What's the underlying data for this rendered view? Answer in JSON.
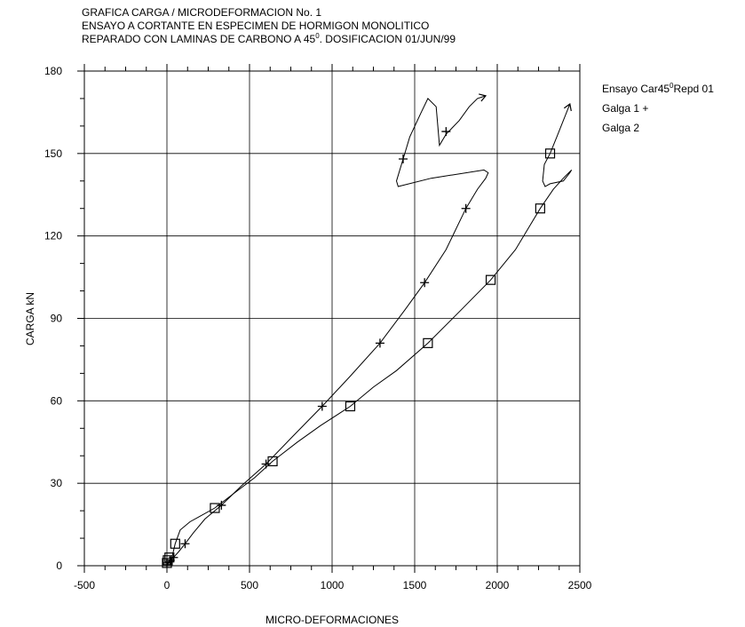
{
  "chart_data": {
    "type": "line",
    "title_lines": [
      "GRAFICA CARGA / MICRODEFORMACION  No. 1",
      "ENSAYO A CORTANTE EN ESPECIMEN DE HORMIGON MONOLITICO",
      "REPARADO CON LAMINAS DE CARBONO A 45",
      "0",
      ". DOSIFICACION 01/JUN/99"
    ],
    "xlabel": "MICRO-DEFORMACIONES",
    "ylabel": "CARGA  kN",
    "xlim": [
      -500,
      2500
    ],
    "ylim": [
      0,
      180
    ],
    "x_ticks": [
      "-500",
      "0",
      "500",
      "1000",
      "1500",
      "2000",
      "2500"
    ],
    "y_ticks": [
      "0",
      "30",
      "60",
      "90",
      "120",
      "150",
      "180"
    ],
    "grid": true,
    "legend": {
      "placement": "right",
      "title_main": "Ensayo Car45",
      "title_sup": "0",
      "title_end": "Repd 01",
      "entries": [
        "Galga 1  +",
        "Galga 2"
      ]
    },
    "series": [
      {
        "name": "Galga 1",
        "marker": "plus",
        "x": [
          0,
          10,
          20,
          40,
          70,
          110,
          160,
          230,
          330,
          450,
          600,
          760,
          940,
          1110,
          1290,
          1440,
          1560,
          1690,
          1810,
          1880,
          1930,
          1945,
          1920,
          1600,
          1400,
          1390,
          1430,
          1470,
          1540,
          1580,
          1630,
          1650,
          1690,
          1770,
          1830,
          1880,
          1930
        ],
        "y": [
          0,
          1,
          2,
          3,
          5,
          8,
          12,
          17,
          22,
          29,
          37,
          47,
          58,
          69,
          81,
          93,
          103,
          115,
          130,
          137,
          141,
          143,
          144,
          141,
          138,
          140,
          148,
          156,
          165,
          170,
          167,
          153,
          157,
          162,
          167,
          170,
          171
        ],
        "marker_x": [
          0,
          20,
          40,
          110,
          330,
          600,
          940,
          1290,
          1560,
          1810,
          1430,
          1690
        ],
        "marker_y": [
          1,
          2,
          3,
          8,
          22,
          37,
          58,
          81,
          103,
          130,
          148,
          158
        ]
      },
      {
        "name": "Galga 2",
        "marker": "square",
        "x": [
          0,
          5,
          15,
          30,
          50,
          80,
          140,
          200,
          290,
          420,
          530,
          640,
          790,
          930,
          1110,
          1250,
          1390,
          1580,
          1780,
          1960,
          2110,
          2260,
          2340,
          2400,
          2450,
          2440,
          2400,
          2320,
          2290,
          2275,
          2285,
          2320,
          2360,
          2400,
          2440
        ],
        "y": [
          0,
          1,
          2,
          3,
          8,
          13,
          16,
          18,
          21,
          27,
          32,
          38,
          45,
          51,
          58,
          65,
          71,
          81,
          93,
          104,
          115,
          130,
          137,
          141,
          144,
          143,
          140,
          139,
          138,
          140,
          146,
          150,
          156,
          162,
          168
        ],
        "marker_x": [
          0,
          5,
          15,
          50,
          290,
          640,
          1110,
          1580,
          1960,
          2260,
          2320
        ],
        "marker_y": [
          1,
          2,
          3,
          8,
          21,
          38,
          58,
          81,
          104,
          130,
          150
        ]
      }
    ]
  }
}
